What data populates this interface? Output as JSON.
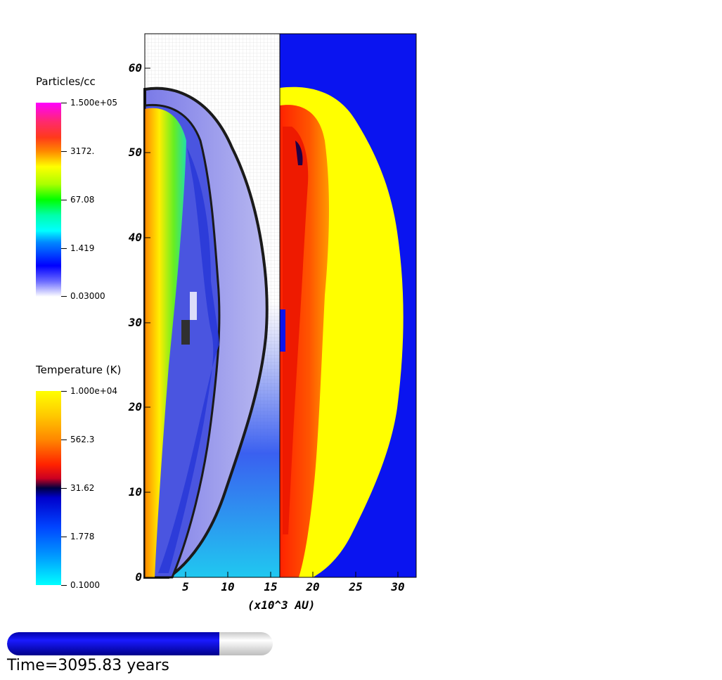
{
  "density_legend": {
    "title": "Particles/cc",
    "ticks": [
      "1.500e+05",
      "3172.",
      "67.08",
      "1.419",
      "0.03000"
    ]
  },
  "temperature_legend": {
    "title": "Temperature (K)",
    "ticks": [
      "1.000e+04",
      "562.3",
      "31.62",
      "1.778",
      "0.1000"
    ]
  },
  "plot": {
    "x_label": "(x10^3 AU)",
    "x_ticks": [
      "5",
      "10",
      "15",
      "20",
      "25",
      "30"
    ],
    "y_ticks": [
      "0",
      "10",
      "20",
      "30",
      "40",
      "50",
      "60"
    ]
  },
  "animation": {
    "progress": 0.8,
    "time_text": "Time=3095.83 years"
  },
  "colors": {
    "background_right": "#0a14f0",
    "shock_outline": "#1a1a1a"
  }
}
